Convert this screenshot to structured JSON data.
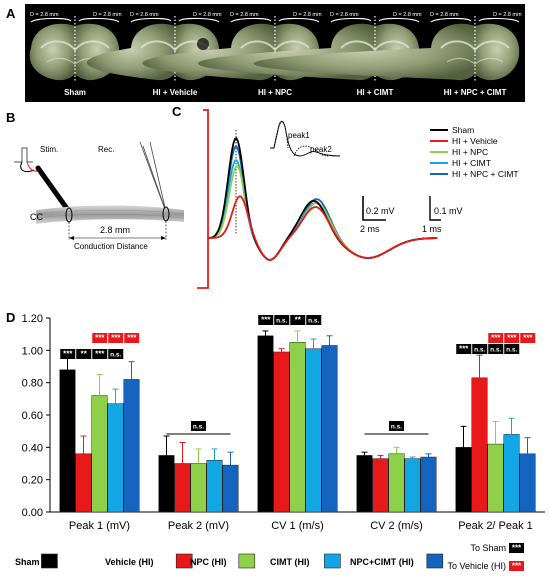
{
  "panel_letters": {
    "a": "A",
    "b": "B",
    "c": "C",
    "d": "D"
  },
  "panel_a": {
    "brains": [
      {
        "label": "Sham",
        "d_left": "D = 2.8 mm",
        "d_right": "D = 2.8 mm"
      },
      {
        "label": "HI + Vehicle",
        "d_left": "D = 2.8 mm",
        "d_right": "D = 2.8 mm"
      },
      {
        "label": "HI + NPC",
        "d_left": "D = 2.8 mm",
        "d_right": "D = 2.8 mm"
      },
      {
        "label": "HI + CIMT",
        "d_left": "D = 2.8 mm",
        "d_right": "D = 2.8 mm"
      },
      {
        "label": "HI + NPC + CIMT",
        "d_left": "D = 2.8 mm",
        "d_right": "D = 2.8 mm"
      }
    ]
  },
  "panel_b": {
    "stim_label": "Stim.",
    "rec_label": "Rec.",
    "cc_label": "CC",
    "distance_value": "2.8 mm",
    "distance_label": "Conduction Distance"
  },
  "panel_c": {
    "legend": [
      {
        "name": "Sham",
        "color": "#000000"
      },
      {
        "name": "HI + Vehicle",
        "color": "#e8191b"
      },
      {
        "name": "HI + NPC",
        "color": "#8ed049"
      },
      {
        "name": "HI + CIMT",
        "color": "#12a7e4"
      },
      {
        "name": "HI + NPC + CIMT",
        "color": "#1565c0"
      }
    ],
    "inset_peak1": "peak1",
    "inset_peak2": "peak2",
    "scale1_y": "0.2 mV",
    "scale1_x": "2 ms",
    "scale2_y": "0.1 mV",
    "scale2_x": "1 ms"
  },
  "colors": {
    "sham": "#000000",
    "vehicle": "#e8191b",
    "npc": "#8ed049",
    "cimt": "#12a7e4",
    "npccimt": "#1565c0",
    "sig_red": "#e8191b"
  },
  "chart_data": {
    "type": "bar",
    "title": "",
    "xlabel": "",
    "ylabel": "",
    "ylim": [
      0,
      1.2
    ],
    "yticks": [
      "0.00",
      "0.20",
      "0.40",
      "0.60",
      "0.80",
      "1.00",
      "1.20"
    ],
    "categories": [
      "Peak 1 (mV)",
      "Peak 2  (mV)",
      "CV 1 (m/s)",
      "CV 2 (m/s)",
      "Peak 2/ Peak 1"
    ],
    "series": [
      {
        "name": "Sham",
        "values": [
          0.88,
          0.35,
          1.09,
          0.35,
          0.4
        ],
        "errors": [
          0.1,
          0.12,
          0.03,
          0.02,
          0.13
        ]
      },
      {
        "name": "Vehicle (HI)",
        "values": [
          0.36,
          0.3,
          0.99,
          0.33,
          0.83
        ],
        "errors": [
          0.11,
          0.13,
          0.02,
          0.02,
          0.14
        ]
      },
      {
        "name": "NPC (HI)",
        "values": [
          0.72,
          0.3,
          1.05,
          0.36,
          0.42
        ],
        "errors": [
          0.13,
          0.09,
          0.07,
          0.04,
          0.14
        ]
      },
      {
        "name": "CIMT (HI)",
        "values": [
          0.67,
          0.32,
          1.01,
          0.33,
          0.48
        ],
        "errors": [
          0.09,
          0.07,
          0.06,
          0.01,
          0.1
        ]
      },
      {
        "name": "NPC+CIMT (HI)",
        "values": [
          0.82,
          0.29,
          1.03,
          0.34,
          0.36
        ],
        "errors": [
          0.11,
          0.08,
          0.06,
          0.02,
          0.1
        ]
      }
    ],
    "significance": {
      "to_sham": [
        {
          "category": 0,
          "labels": [
            "***",
            "**",
            "***",
            "n.s."
          ]
        },
        {
          "category": 2,
          "labels": [
            "***",
            "n.s.",
            "**",
            "n.s."
          ]
        },
        {
          "category": 4,
          "labels": [
            "***",
            "n.s.",
            "n.s.",
            "n.s."
          ]
        }
      ],
      "to_vehicle": [
        {
          "category": 0,
          "labels": [
            "***",
            "***",
            "***"
          ]
        },
        {
          "category": 4,
          "labels": [
            "***",
            "***",
            "***"
          ]
        }
      ],
      "bracket_ns": [
        {
          "category": 1,
          "label": "n.s."
        },
        {
          "category": 3,
          "label": "n.s."
        }
      ]
    },
    "key_to_sham": "To Sham",
    "key_to_vehicle": "To Vehicle (HI)",
    "key_marker": "***"
  }
}
